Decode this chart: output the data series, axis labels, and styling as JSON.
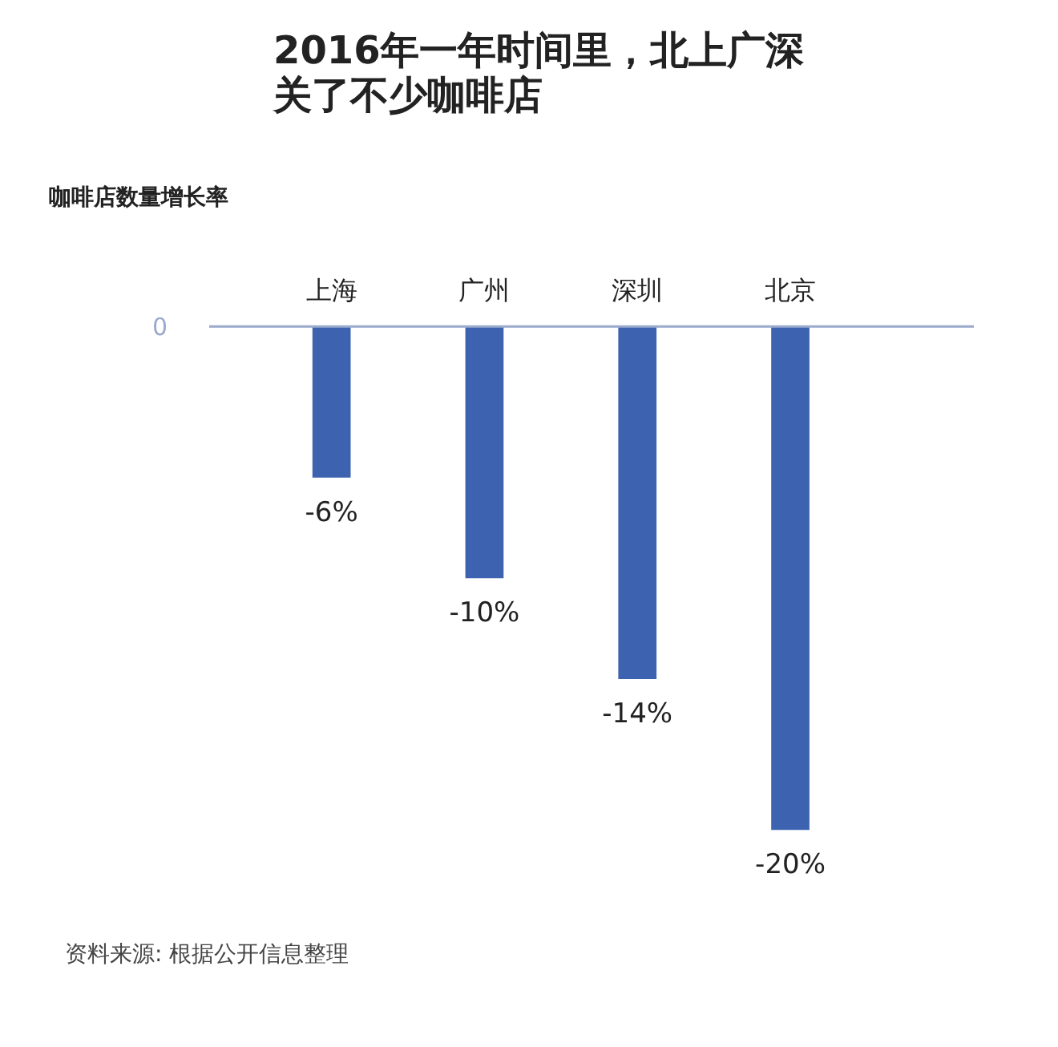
{
  "chart_data": {
    "type": "bar",
    "title": "2016年一年时间里，北上广深关了不少咖啡店",
    "ylabel": "咖啡店数量增长率",
    "categories": [
      "上海",
      "广州",
      "深圳",
      "北京"
    ],
    "values": [
      -6,
      -10,
      -14,
      -20
    ],
    "value_labels": [
      "-6%",
      "-10%",
      "-14%",
      "-20%"
    ],
    "color": "#3d63b0",
    "annotations": [
      "0",
      "资料来源: 根据公开信息整理"
    ]
  }
}
